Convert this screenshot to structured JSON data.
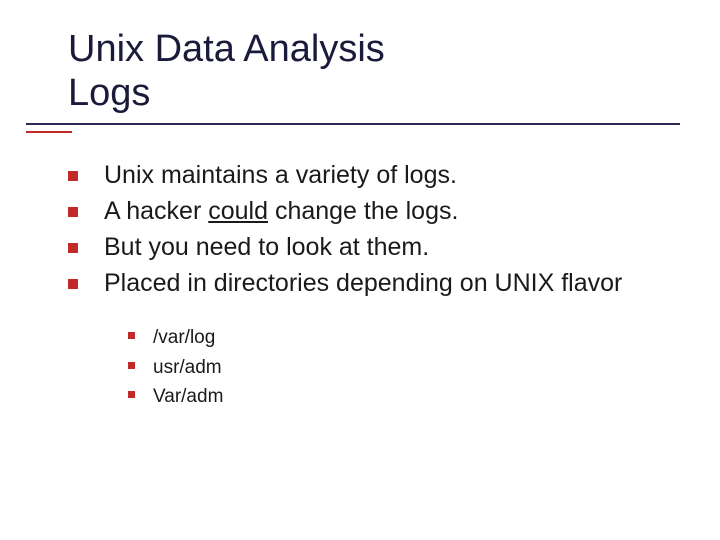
{
  "slide": {
    "title_line_1": "Unix Data Analysis",
    "title_line_2": "Logs",
    "title_color": "#1a1a3a",
    "rule_long_color": "#2a2a55",
    "rule_short_color": "#c22a2a",
    "bullet_color": "#c22a2a",
    "body_color": "#1a1a1a",
    "background_color": "#ffffff",
    "main_fontsize": 25,
    "sub_fontsize": 19,
    "bullets": [
      {
        "text": "Unix maintains a variety of logs."
      },
      {
        "prefix": "A hacker ",
        "underlined": "could",
        "suffix": " change the logs."
      },
      {
        "text": "But you need to look at them."
      },
      {
        "text": "Placed in directories depending on UNIX flavor"
      }
    ],
    "sub_bullets": [
      {
        "text": "/var/log"
      },
      {
        "text": "usr/adm"
      },
      {
        "text": "Var/adm"
      }
    ]
  }
}
